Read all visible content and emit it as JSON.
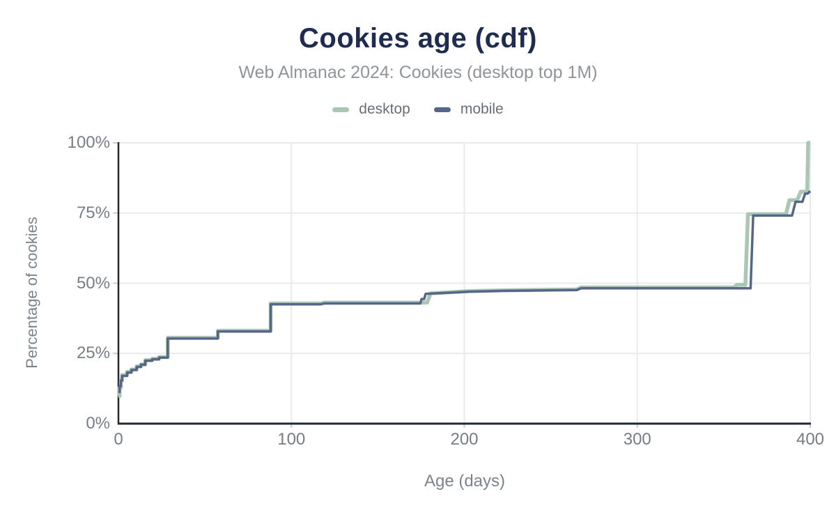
{
  "title": "Cookies age (cdf)",
  "subtitle": "Web Almanac 2024: Cookies (desktop top 1M)",
  "colors": {
    "title": "#1f2c4f",
    "subtitle": "#8e959c",
    "tick_label": "#767d85",
    "axis_title": "#7b838b",
    "gridline": "#e8eaec",
    "axis_line": "#23272e",
    "tick_mark": "#c9cdd2",
    "desktop": "#a9c7b2",
    "mobile": "#566689"
  },
  "chart_data": {
    "type": "line",
    "subtype": "cdf-step",
    "title": "Cookies age (cdf)",
    "subtitle": "Web Almanac 2024: Cookies (desktop top 1M)",
    "xlabel": "Age (days)",
    "ylabel": "Percentage of cookies",
    "xlim": [
      0,
      400
    ],
    "ylim": [
      0,
      100
    ],
    "grid": true,
    "legend_position": "top",
    "x_ticks": [
      {
        "value": 0,
        "label": "0"
      },
      {
        "value": 100,
        "label": "100"
      },
      {
        "value": 200,
        "label": "200"
      },
      {
        "value": 300,
        "label": "300"
      },
      {
        "value": 400,
        "label": "400"
      }
    ],
    "y_ticks": [
      {
        "value": 0,
        "label": "0%"
      },
      {
        "value": 25,
        "label": "25%"
      },
      {
        "value": 50,
        "label": "50%"
      },
      {
        "value": 75,
        "label": "75%"
      },
      {
        "value": 100,
        "label": "100%"
      }
    ],
    "series": [
      {
        "name": "desktop",
        "color": "#a9c7b2",
        "stroke_width": 5.5,
        "points_note": "polyline vertices [age_days, percent_of_cookies]",
        "points": [
          [
            0,
            9.8
          ],
          [
            0.7,
            9.8
          ],
          [
            0.7,
            12.8
          ],
          [
            1.4,
            12.8
          ],
          [
            1.4,
            15.3
          ],
          [
            2.1,
            15.3
          ],
          [
            2.1,
            17.3
          ],
          [
            5,
            17.3
          ],
          [
            5,
            18.4
          ],
          [
            7.5,
            18.4
          ],
          [
            7.5,
            19.3
          ],
          [
            10.5,
            19.3
          ],
          [
            10.5,
            20.4
          ],
          [
            13,
            20.4
          ],
          [
            13,
            21.1
          ],
          [
            15.5,
            21.1
          ],
          [
            15.5,
            22.6
          ],
          [
            19.5,
            22.6
          ],
          [
            19.5,
            23.1
          ],
          [
            23.5,
            23.1
          ],
          [
            23.5,
            23.7
          ],
          [
            28.5,
            23.7
          ],
          [
            28.5,
            30.6
          ],
          [
            57.5,
            30.6
          ],
          [
            57.5,
            33.1
          ],
          [
            88,
            33.1
          ],
          [
            88,
            42.8
          ],
          [
            117,
            42.8
          ],
          [
            119,
            43.1
          ],
          [
            178.5,
            43.1
          ],
          [
            180.5,
            46.4
          ],
          [
            203,
            47.2
          ],
          [
            224,
            47.5
          ],
          [
            265,
            47.8
          ],
          [
            267.5,
            48.5
          ],
          [
            356,
            48.5
          ],
          [
            357.5,
            49.4
          ],
          [
            362.5,
            49.4
          ],
          [
            364,
            74.6
          ],
          [
            386,
            74.6
          ],
          [
            388,
            79.6
          ],
          [
            392.5,
            79.6
          ],
          [
            394.5,
            82.6
          ],
          [
            397.5,
            82.6
          ],
          [
            398.3,
            83.2
          ],
          [
            398.8,
            100
          ],
          [
            400,
            100
          ]
        ]
      },
      {
        "name": "mobile",
        "color": "#566689",
        "stroke_width": 3.5,
        "points_note": "polyline vertices [age_days, percent_of_cookies]",
        "points": [
          [
            0,
            11.3
          ],
          [
            0.7,
            11.3
          ],
          [
            0.7,
            13.3
          ],
          [
            1.4,
            13.3
          ],
          [
            1.4,
            15.3
          ],
          [
            2.1,
            15.3
          ],
          [
            2.1,
            17
          ],
          [
            5,
            17
          ],
          [
            5,
            18.2
          ],
          [
            7.5,
            18.2
          ],
          [
            7.5,
            19.1
          ],
          [
            10.5,
            19.1
          ],
          [
            10.5,
            20.2
          ],
          [
            13,
            20.2
          ],
          [
            13,
            21
          ],
          [
            15.5,
            21
          ],
          [
            15.5,
            22.4
          ],
          [
            19.5,
            22.4
          ],
          [
            19.5,
            22.9
          ],
          [
            23.5,
            22.9
          ],
          [
            23.5,
            23.5
          ],
          [
            28.5,
            23.5
          ],
          [
            28.5,
            30.3
          ],
          [
            57.5,
            30.3
          ],
          [
            57.5,
            32.8
          ],
          [
            88,
            32.8
          ],
          [
            88,
            42.5
          ],
          [
            117,
            42.5
          ],
          [
            119,
            42.8
          ],
          [
            174.5,
            42.8
          ],
          [
            175.3,
            44.4
          ],
          [
            176.8,
            44.4
          ],
          [
            177.6,
            46.2
          ],
          [
            203,
            47
          ],
          [
            224,
            47.3
          ],
          [
            265,
            47.6
          ],
          [
            267.5,
            48.2
          ],
          [
            365.5,
            48.2
          ],
          [
            367,
            74.1
          ],
          [
            389.5,
            74.1
          ],
          [
            391.5,
            79
          ],
          [
            395.5,
            79
          ],
          [
            397,
            81.9
          ],
          [
            398.5,
            81.9
          ],
          [
            400,
            82.8
          ]
        ]
      }
    ]
  }
}
